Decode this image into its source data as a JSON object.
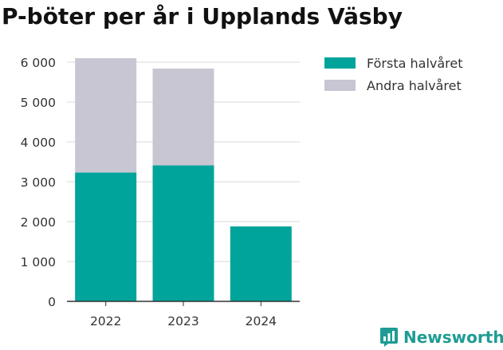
{
  "chart_data": {
    "type": "bar",
    "stacked": true,
    "title": "P-böter per år i Upplands Väsby",
    "categories": [
      "2022",
      "2023",
      "2024"
    ],
    "series": [
      {
        "name": "Första halvåret",
        "color": "#00a49b",
        "values": [
          3230,
          3410,
          1880
        ]
      },
      {
        "name": "Andra halvåret",
        "color": "#c8c6d2",
        "values": [
          2870,
          2430,
          0
        ]
      }
    ],
    "y_ticks": [
      0,
      1000,
      2000,
      3000,
      4000,
      5000,
      6000
    ],
    "y_tick_labels": [
      "0",
      "1 000",
      "2 000",
      "3 000",
      "4 000",
      "5 000",
      "6 000"
    ],
    "ylim": [
      0,
      6500
    ],
    "xlabel": "",
    "ylabel": "",
    "grid": true,
    "legend_position": "top-right"
  },
  "branding": {
    "name": "Newsworthy",
    "icon": "newsworthy-logo-icon",
    "color": "#1e9c93"
  }
}
